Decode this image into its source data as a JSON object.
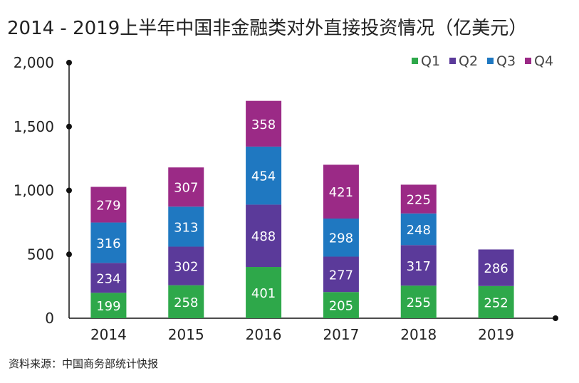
{
  "chart_data": {
    "type": "bar",
    "stacked": true,
    "title": "2014 - 2019上半年中国非金融类对外直接投资情况（亿美元）",
    "source": "资料来源：中国商务部统计快报",
    "categories": [
      "2014",
      "2015",
      "2016",
      "2017",
      "2018",
      "2019"
    ],
    "series": [
      {
        "name": "Q1",
        "color": "#2ea84a",
        "values": [
          199,
          258,
          401,
          205,
          255,
          252
        ]
      },
      {
        "name": "Q2",
        "color": "#5b3a9a",
        "values": [
          234,
          302,
          488,
          277,
          317,
          286
        ]
      },
      {
        "name": "Q3",
        "color": "#1f78c1",
        "values": [
          316,
          313,
          454,
          298,
          248,
          null
        ]
      },
      {
        "name": "Q4",
        "color": "#9b2a86",
        "values": [
          279,
          307,
          358,
          421,
          225,
          null
        ]
      }
    ],
    "ylim": [
      0,
      2000
    ],
    "yticks": [
      "0",
      "500",
      "1,000",
      "1,500",
      "2,000"
    ],
    "ytick_values": [
      0,
      500,
      1000,
      1500,
      2000
    ],
    "grid": false,
    "legend": "top-right"
  }
}
